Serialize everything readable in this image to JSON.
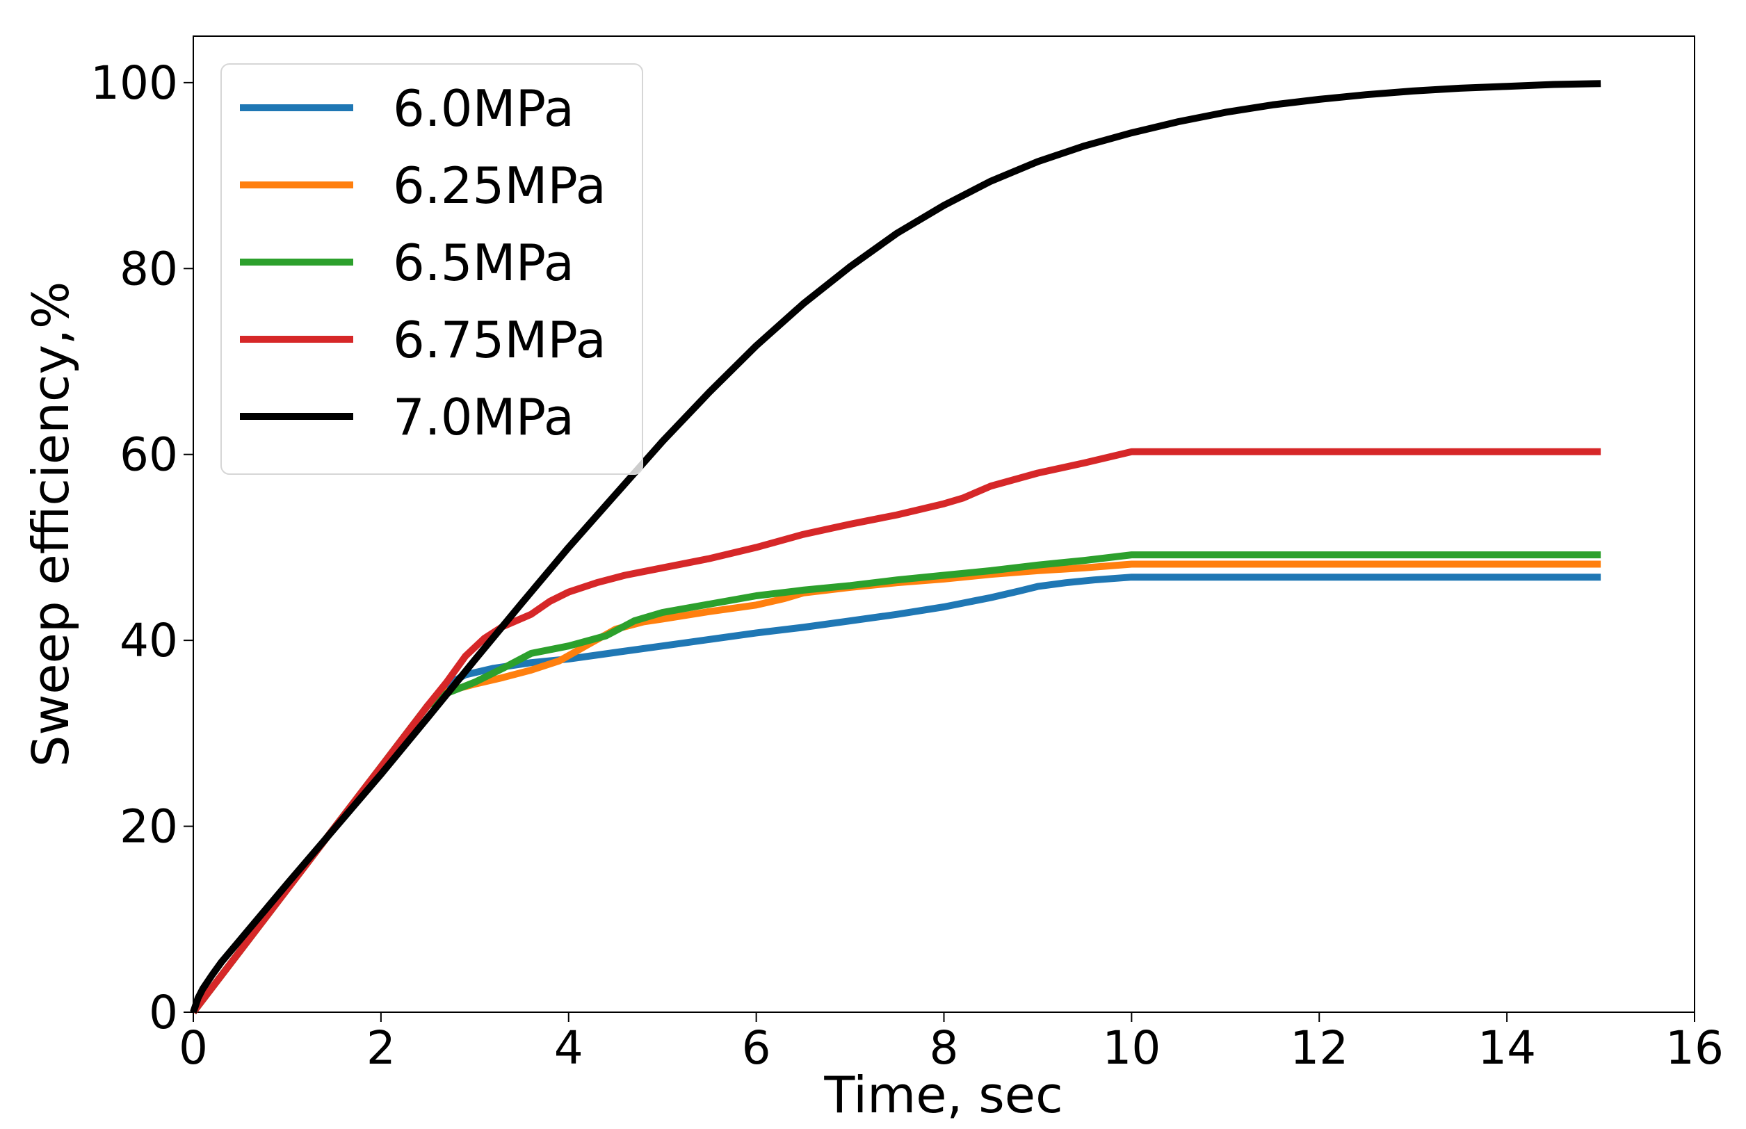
{
  "chart_data": {
    "type": "line",
    "title": "",
    "xlabel": "Time, sec",
    "ylabel": "Sweep efficiency,%",
    "xlim": [
      0,
      16
    ],
    "ylim": [
      0,
      105
    ],
    "xticks": [
      0,
      2,
      4,
      6,
      8,
      10,
      12,
      14,
      16
    ],
    "yticks": [
      0,
      20,
      40,
      60,
      80,
      100
    ],
    "grid": false,
    "legend_position": "top-left",
    "series": [
      {
        "name": "6.0MPa",
        "color": "#1f77b4",
        "x": [
          0,
          0.5,
          1,
          1.5,
          2,
          2.5,
          2.7,
          2.9,
          3.2,
          3.6,
          4,
          4.5,
          5,
          5.5,
          6,
          6.5,
          7,
          7.5,
          8,
          8.5,
          8.8,
          9,
          9.3,
          9.6,
          10,
          11,
          12,
          13,
          14,
          15
        ],
        "y": [
          0,
          6.6,
          13.2,
          19.8,
          26.4,
          33,
          35.2,
          36.3,
          37,
          37.6,
          38,
          38.7,
          39.4,
          40.1,
          40.8,
          41.4,
          42.1,
          42.8,
          43.6,
          44.6,
          45.3,
          45.8,
          46.2,
          46.5,
          46.8,
          46.8,
          46.8,
          46.8,
          46.8,
          46.8
        ]
      },
      {
        "name": "6.25MPa",
        "color": "#ff7f0e",
        "x": [
          0,
          0.5,
          1,
          1.5,
          2,
          2.5,
          2.7,
          3,
          3.3,
          3.6,
          3.9,
          4.2,
          4.5,
          4.8,
          5,
          5.5,
          6,
          6.3,
          6.5,
          7,
          7.5,
          8,
          8.5,
          9,
          9.5,
          10,
          11,
          12,
          13,
          14,
          15
        ],
        "y": [
          0,
          6.6,
          13.2,
          19.8,
          26.4,
          33,
          34.5,
          35.3,
          36,
          36.8,
          37.8,
          39.5,
          41.2,
          42,
          42.3,
          43.1,
          43.8,
          44.5,
          45.1,
          45.7,
          46.2,
          46.6,
          47.1,
          47.5,
          47.8,
          48.2,
          48.2,
          48.2,
          48.2,
          48.2,
          48.2
        ]
      },
      {
        "name": "6.5MPa",
        "color": "#2ca02c",
        "x": [
          0,
          0.5,
          1,
          1.5,
          2,
          2.5,
          2.7,
          3,
          3.3,
          3.6,
          4,
          4.4,
          4.7,
          5,
          5.5,
          6,
          6.5,
          7,
          7.5,
          8,
          8.5,
          9,
          9.5,
          10,
          11,
          12,
          13,
          14,
          15
        ],
        "y": [
          0,
          6.6,
          13.2,
          19.8,
          26.4,
          33,
          34.3,
          35.5,
          37,
          38.6,
          39.4,
          40.5,
          42.1,
          43,
          43.9,
          44.8,
          45.4,
          45.9,
          46.5,
          47,
          47.5,
          48.1,
          48.6,
          49.2,
          49.2,
          49.2,
          49.2,
          49.2,
          49.2
        ]
      },
      {
        "name": "6.75MPa",
        "color": "#d62728",
        "x": [
          0,
          0.5,
          1,
          1.5,
          2,
          2.5,
          2.7,
          2.9,
          3.1,
          3.3,
          3.6,
          3.8,
          4,
          4.3,
          4.6,
          5,
          5.5,
          6,
          6.5,
          7,
          7.5,
          8,
          8.2,
          8.5,
          9,
          9.5,
          10,
          11,
          12,
          13,
          14,
          15
        ],
        "y": [
          0,
          6.6,
          13.2,
          19.8,
          26.4,
          33,
          35.5,
          38.3,
          40.2,
          41.5,
          42.8,
          44.2,
          45.2,
          46.2,
          47,
          47.8,
          48.8,
          50,
          51.4,
          52.5,
          53.5,
          54.7,
          55.3,
          56.6,
          58,
          59.1,
          60.3,
          60.3,
          60.3,
          60.3,
          60.3,
          60.3
        ]
      },
      {
        "name": "7.0MPa",
        "color": "#000000",
        "x": [
          0,
          0.05,
          0.1,
          0.2,
          0.3,
          0.5,
          0.75,
          1,
          1.5,
          2,
          2.5,
          3,
          3.5,
          4,
          4.5,
          5,
          5.5,
          6,
          6.5,
          7,
          7.5,
          8,
          8.5,
          9,
          9.5,
          10,
          10.5,
          11,
          11.5,
          12,
          12.5,
          13,
          13.5,
          14,
          14.5,
          15
        ],
        "y": [
          0,
          1.5,
          2.5,
          4,
          5.4,
          7.8,
          10.8,
          13.8,
          19.7,
          25.6,
          31.7,
          37.9,
          44,
          50,
          55.7,
          61.4,
          66.7,
          71.7,
          76.2,
          80.2,
          83.8,
          86.8,
          89.4,
          91.5,
          93.2,
          94.6,
          95.8,
          96.8,
          97.6,
          98.2,
          98.7,
          99.1,
          99.4,
          99.6,
          99.8,
          99.9
        ]
      }
    ]
  }
}
